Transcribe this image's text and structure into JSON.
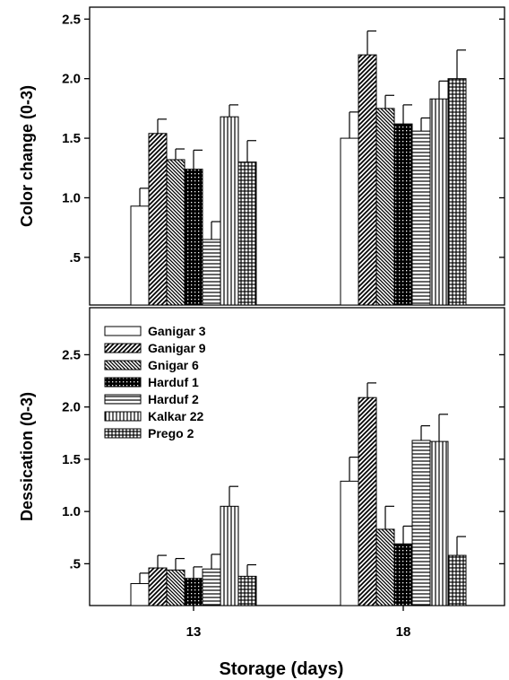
{
  "chart_data": {
    "type": "bar",
    "categories": [
      "13",
      "18"
    ],
    "xlabel": "Storage (days)",
    "legend": {
      "position": "top-left"
    },
    "series_styles": [
      {
        "name": "Ganigar 3",
        "pattern": "blank"
      },
      {
        "name": "Ganigar 9",
        "pattern": "diag-right"
      },
      {
        "name": "Gnigar 6",
        "pattern": "diag-left"
      },
      {
        "name": "Harduf 1",
        "pattern": "crosshatch"
      },
      {
        "name": "Harduf 2",
        "pattern": "horizontal"
      },
      {
        "name": "Kalkar 22",
        "pattern": "vertical"
      },
      {
        "name": "Prego 2",
        "pattern": "grid"
      }
    ],
    "panels": [
      {
        "ylabel": "Color change (0-3)",
        "ylim": [
          0.1,
          2.6
        ],
        "yticks": [
          0.5,
          1.0,
          1.5,
          2.0,
          2.5
        ],
        "ytick_labels": [
          ".5",
          "1.0",
          "1.5",
          "2.0",
          "2.5"
        ],
        "series": [
          {
            "name": "Ganigar 3",
            "values": [
              0.93,
              1.5
            ],
            "errors": [
              0.15,
              0.22
            ]
          },
          {
            "name": "Ganigar 9",
            "values": [
              1.54,
              2.2
            ],
            "errors": [
              0.12,
              0.2
            ]
          },
          {
            "name": "Gnigar 6",
            "values": [
              1.32,
              1.75
            ],
            "errors": [
              0.09,
              0.11
            ]
          },
          {
            "name": "Harduf 1",
            "values": [
              1.24,
              1.62
            ],
            "errors": [
              0.16,
              0.16
            ]
          },
          {
            "name": "Harduf 2",
            "values": [
              0.65,
              1.56
            ],
            "errors": [
              0.15,
              0.11
            ]
          },
          {
            "name": "Kalkar 22",
            "values": [
              1.68,
              1.83
            ],
            "errors": [
              0.1,
              0.15
            ]
          },
          {
            "name": "Prego 2",
            "values": [
              1.3,
              2.0
            ],
            "errors": [
              0.18,
              0.24
            ]
          }
        ]
      },
      {
        "ylabel": "Dessication (0-3)",
        "ylim": [
          0.1,
          2.95
        ],
        "yticks": [
          0.5,
          1.0,
          1.5,
          2.0,
          2.5
        ],
        "ytick_labels": [
          ".5",
          "1.0",
          "1.5",
          "2.0",
          "2.5"
        ],
        "series": [
          {
            "name": "Ganigar 3",
            "values": [
              0.31,
              1.29
            ],
            "errors": [
              0.1,
              0.23
            ]
          },
          {
            "name": "Ganigar 9",
            "values": [
              0.46,
              2.09
            ],
            "errors": [
              0.12,
              0.14
            ]
          },
          {
            "name": "Gnigar 6",
            "values": [
              0.44,
              0.83
            ],
            "errors": [
              0.11,
              0.22
            ]
          },
          {
            "name": "Harduf 1",
            "values": [
              0.36,
              0.69
            ],
            "errors": [
              0.11,
              0.17
            ]
          },
          {
            "name": "Harduf 2",
            "values": [
              0.45,
              1.68
            ],
            "errors": [
              0.14,
              0.14
            ]
          },
          {
            "name": "Kalkar 22",
            "values": [
              1.05,
              1.67
            ],
            "errors": [
              0.19,
              0.26
            ]
          },
          {
            "name": "Prego 2",
            "values": [
              0.38,
              0.58
            ],
            "errors": [
              0.11,
              0.18
            ]
          }
        ]
      }
    ]
  }
}
